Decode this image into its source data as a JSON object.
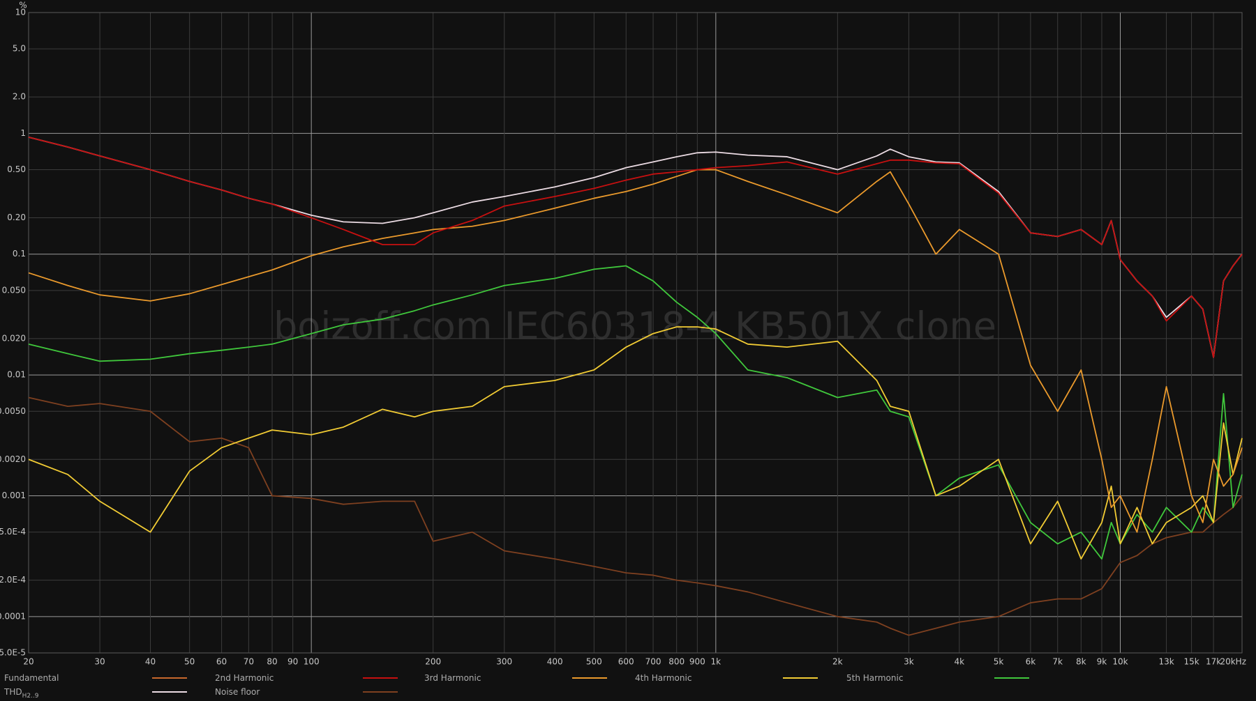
{
  "chart_data": {
    "type": "line",
    "y_unit": "%",
    "watermark": "boizoff.com IEC60318-4 KB501X clone",
    "log_x": true,
    "log_y": true,
    "grid": true,
    "xlim": [
      20,
      20000
    ],
    "ylim": [
      5e-05,
      10
    ],
    "xticks": [
      20,
      30,
      40,
      50,
      60,
      70,
      80,
      90,
      100,
      200,
      300,
      400,
      500,
      600,
      700,
      800,
      900,
      {
        "value": 1000,
        "label": "1k"
      },
      {
        "value": 2000,
        "label": "2k"
      },
      {
        "value": 3000,
        "label": "3k"
      },
      {
        "value": 4000,
        "label": "4k"
      },
      {
        "value": 5000,
        "label": "5k"
      },
      {
        "value": 6000,
        "label": "6k"
      },
      {
        "value": 7000,
        "label": "7k"
      },
      {
        "value": 8000,
        "label": "8k"
      },
      {
        "value": 9000,
        "label": "9k"
      },
      {
        "value": 10000,
        "label": "10k"
      },
      {
        "value": 13000,
        "label": "13k"
      },
      {
        "value": 15000,
        "label": "15k"
      },
      {
        "value": 17000,
        "label": "17k"
      },
      {
        "value": 20000,
        "label": "20kHz"
      }
    ],
    "yticks": [
      10,
      {
        "value": 5,
        "label": "5.0"
      },
      {
        "value": 2,
        "label": "2.0"
      },
      1,
      {
        "value": 0.5,
        "label": "0.50"
      },
      {
        "value": 0.2,
        "label": "0.20"
      },
      0.1,
      {
        "value": 0.05,
        "label": "0.050"
      },
      {
        "value": 0.02,
        "label": "0.020"
      },
      0.01,
      {
        "value": 0.005,
        "label": "0.0050"
      },
      {
        "value": 0.002,
        "label": "0.0020"
      },
      0.001,
      {
        "value": 0.0005,
        "label": "5.0E-4"
      },
      {
        "value": 0.0002,
        "label": "2.0E-4"
      },
      0.0001,
      {
        "value": 5e-05,
        "label": "5.0E-5"
      }
    ],
    "x": [
      20,
      25,
      30,
      40,
      50,
      60,
      70,
      80,
      100,
      120,
      150,
      180,
      200,
      250,
      300,
      400,
      500,
      600,
      700,
      800,
      900,
      1000,
      1200,
      1500,
      2000,
      2500,
      2700,
      3000,
      3500,
      4000,
      5000,
      6000,
      7000,
      8000,
      9000,
      9500,
      10000,
      11000,
      12000,
      13000,
      15000,
      16000,
      17000,
      18000,
      19000,
      20000
    ],
    "series": [
      {
        "name": "Fundamental",
        "color": "#c8682c"
      },
      {
        "name": "2nd Harmonic",
        "color": "#c81010",
        "values": [
          0.93,
          0.77,
          0.65,
          0.5,
          0.4,
          0.34,
          0.29,
          0.26,
          0.2,
          0.16,
          0.12,
          0.12,
          0.15,
          0.19,
          0.25,
          0.3,
          0.35,
          0.41,
          0.46,
          0.48,
          0.5,
          0.52,
          0.54,
          0.58,
          0.46,
          0.56,
          0.6,
          0.6,
          0.57,
          0.56,
          0.32,
          0.15,
          0.14,
          0.16,
          0.12,
          0.19,
          0.09,
          0.06,
          0.045,
          0.028,
          0.045,
          0.035,
          0.014,
          0.06,
          0.08,
          0.1
        ]
      },
      {
        "name": "3rd Harmonic",
        "color": "#eb9a2c",
        "values": [
          0.07,
          0.055,
          0.046,
          0.041,
          0.047,
          0.056,
          0.065,
          0.074,
          0.097,
          0.115,
          0.135,
          0.15,
          0.16,
          0.17,
          0.19,
          0.24,
          0.29,
          0.33,
          0.38,
          0.44,
          0.5,
          0.5,
          0.4,
          0.31,
          0.22,
          0.4,
          0.48,
          0.26,
          0.1,
          0.16,
          0.1,
          0.012,
          0.005,
          0.011,
          0.002,
          0.0008,
          0.001,
          0.0005,
          0.002,
          0.008,
          0.001,
          0.0006,
          0.002,
          0.0012,
          0.0015,
          0.0025
        ]
      },
      {
        "name": "4th Harmonic",
        "color": "#f2cc34",
        "values": [
          0.002,
          0.0015,
          0.0009,
          0.0005,
          0.0016,
          0.0025,
          0.003,
          0.0035,
          0.0032,
          0.0037,
          0.0052,
          0.0045,
          0.005,
          0.0055,
          0.008,
          0.009,
          0.011,
          0.017,
          0.022,
          0.025,
          0.025,
          0.024,
          0.018,
          0.017,
          0.019,
          0.009,
          0.0055,
          0.005,
          0.001,
          0.0012,
          0.002,
          0.0004,
          0.0009,
          0.0003,
          0.0006,
          0.0012,
          0.0004,
          0.0008,
          0.0004,
          0.0006,
          0.0008,
          0.001,
          0.0006,
          0.004,
          0.0015,
          0.003
        ]
      },
      {
        "name": "5th Harmonic",
        "color": "#40c83c",
        "values": [
          0.018,
          0.015,
          0.013,
          0.0135,
          0.015,
          0.016,
          0.017,
          0.018,
          0.022,
          0.026,
          0.029,
          0.034,
          0.038,
          0.046,
          0.055,
          0.063,
          0.075,
          0.08,
          0.06,
          0.04,
          0.03,
          0.022,
          0.011,
          0.0095,
          0.0065,
          0.0075,
          0.005,
          0.0045,
          0.001,
          0.0014,
          0.0018,
          0.0006,
          0.0004,
          0.0005,
          0.0003,
          0.0006,
          0.0004,
          0.0007,
          0.0005,
          0.0008,
          0.0005,
          0.0008,
          0.0006,
          0.007,
          0.0008,
          0.0015
        ]
      },
      {
        "name": "THD",
        "name_sub": "H2..9",
        "color": "#ecdce4",
        "values": [
          0.93,
          0.77,
          0.65,
          0.5,
          0.4,
          0.34,
          0.29,
          0.26,
          0.21,
          0.185,
          0.18,
          0.2,
          0.22,
          0.27,
          0.3,
          0.36,
          0.43,
          0.52,
          0.58,
          0.64,
          0.69,
          0.7,
          0.66,
          0.64,
          0.5,
          0.65,
          0.74,
          0.64,
          0.58,
          0.57,
          0.33,
          0.15,
          0.14,
          0.16,
          0.12,
          0.19,
          0.09,
          0.06,
          0.045,
          0.03,
          0.045,
          0.035,
          0.014,
          0.06,
          0.08,
          0.1
        ]
      },
      {
        "name": "Noise floor",
        "color": "#7e4020",
        "values": [
          0.0065,
          0.0055,
          0.0058,
          0.005,
          0.0028,
          0.003,
          0.0025,
          0.001,
          0.00095,
          0.00085,
          0.0009,
          0.0009,
          0.00042,
          0.0005,
          0.00035,
          0.0003,
          0.00026,
          0.00023,
          0.00022,
          0.0002,
          0.00019,
          0.00018,
          0.00016,
          0.00013,
          0.0001,
          9e-05,
          8e-05,
          7e-05,
          8e-05,
          9e-05,
          0.0001,
          0.00013,
          0.00014,
          0.00014,
          0.00017,
          0.00022,
          0.00028,
          0.00032,
          0.0004,
          0.00045,
          0.0005,
          0.0005,
          0.0006,
          0.0007,
          0.0008,
          0.001
        ]
      }
    ]
  }
}
